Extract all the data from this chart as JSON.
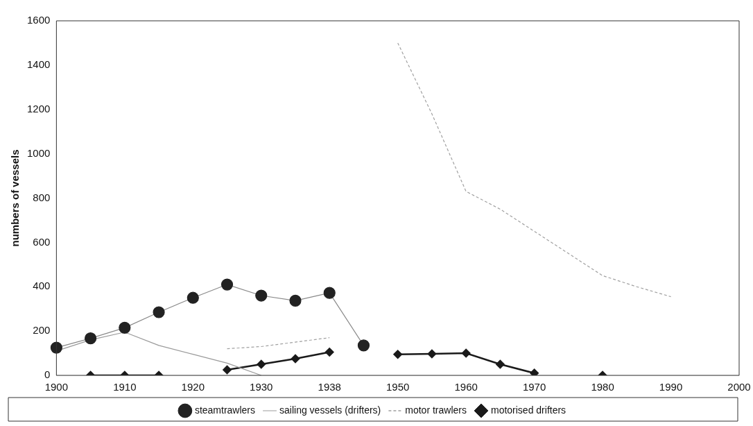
{
  "chart_data": {
    "type": "line",
    "ylabel": "numbers of vessels",
    "categories": [
      "1900",
      null,
      "1910",
      null,
      "1920",
      null,
      "1930",
      null,
      "1938",
      null,
      "1950",
      null,
      "1960",
      null,
      "1970",
      null,
      "1980",
      null,
      "1990",
      null,
      "2000"
    ],
    "ylim": [
      0,
      1600
    ],
    "yticks": [
      0,
      200,
      400,
      600,
      800,
      1000,
      1200,
      1400,
      1600
    ],
    "grid": false,
    "legend": "bottom",
    "series": [
      {
        "name": "steamtrawlers",
        "color": "#8a8a8a",
        "marker": "circle",
        "line_style": "solid",
        "values": [
          125,
          167,
          215,
          285,
          350,
          410,
          360,
          337,
          372,
          135,
          null,
          null,
          null,
          null,
          null,
          null,
          null,
          null,
          null,
          null,
          null
        ]
      },
      {
        "name": "sailing vessels (drifters)",
        "color": "#9a9a9a",
        "marker": "none",
        "line_style": "solid",
        "values": [
          110,
          160,
          195,
          135,
          95,
          55,
          0,
          null,
          null,
          null,
          null,
          null,
          null,
          null,
          null,
          null,
          null,
          null,
          null,
          null,
          null
        ]
      },
      {
        "name": "motor trawlers",
        "color": "#a0a0a0",
        "marker": "none",
        "line_style": "dashed",
        "values": [
          null,
          null,
          null,
          null,
          null,
          120,
          130,
          150,
          170,
          null,
          1500,
          1180,
          830,
          750,
          650,
          550,
          450,
          400,
          355,
          null,
          null
        ]
      },
      {
        "name": "motorised drifters",
        "color": "#1a1a1a",
        "marker": "diamond",
        "line_style": "solid",
        "values": [
          null,
          0,
          0,
          0,
          null,
          25,
          50,
          75,
          105,
          null,
          95,
          97,
          100,
          50,
          10,
          null,
          0,
          null,
          null,
          null,
          null
        ]
      }
    ]
  }
}
